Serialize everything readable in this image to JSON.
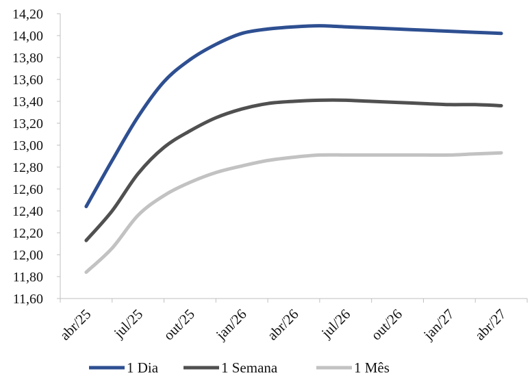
{
  "chart_data": {
    "type": "line",
    "title": "",
    "xlabel": "",
    "ylabel": "",
    "categories": [
      "abr/25",
      "jul/25",
      "out/25",
      "jan/26",
      "abr/26",
      "jul/26",
      "out/26",
      "jan/27",
      "abr/27"
    ],
    "y_ticks": [
      "11,60",
      "11,80",
      "12,00",
      "12,20",
      "12,40",
      "12,60",
      "12,80",
      "13,00",
      "13,20",
      "13,40",
      "13,60",
      "13,80",
      "14,00",
      "14,20"
    ],
    "ylim": [
      11.6,
      14.2
    ],
    "grid": false,
    "legend_position": "bottom",
    "series": [
      {
        "name": "1 Dia",
        "color": "#2e4f91",
        "x": [
          0,
          0.5,
          1,
          1.5,
          2,
          2.5,
          3,
          3.5,
          4,
          4.5,
          5,
          5.5,
          6,
          6.5,
          7,
          7.5,
          8
        ],
        "values": [
          12.44,
          12.86,
          13.26,
          13.58,
          13.78,
          13.92,
          14.02,
          14.06,
          14.08,
          14.09,
          14.08,
          14.07,
          14.06,
          14.05,
          14.04,
          14.03,
          14.02
        ]
      },
      {
        "name": "1 Semana",
        "color": "#505050",
        "x": [
          0,
          0.5,
          1,
          1.5,
          2,
          2.5,
          3,
          3.5,
          4,
          4.5,
          5,
          5.5,
          6,
          6.5,
          7,
          7.5,
          8
        ],
        "values": [
          12.13,
          12.4,
          12.74,
          12.98,
          13.13,
          13.25,
          13.33,
          13.38,
          13.4,
          13.41,
          13.41,
          13.4,
          13.39,
          13.38,
          13.37,
          13.37,
          13.36
        ]
      },
      {
        "name": "1 Mês",
        "color": "#c2c2c2",
        "x": [
          0,
          0.5,
          1,
          1.5,
          2,
          2.5,
          3,
          3.5,
          4,
          4.5,
          5,
          5.5,
          6,
          6.5,
          7,
          7.5,
          8
        ],
        "values": [
          11.84,
          12.06,
          12.36,
          12.54,
          12.66,
          12.75,
          12.81,
          12.86,
          12.89,
          12.91,
          12.91,
          12.91,
          12.91,
          12.91,
          12.91,
          12.92,
          12.93
        ]
      }
    ]
  }
}
